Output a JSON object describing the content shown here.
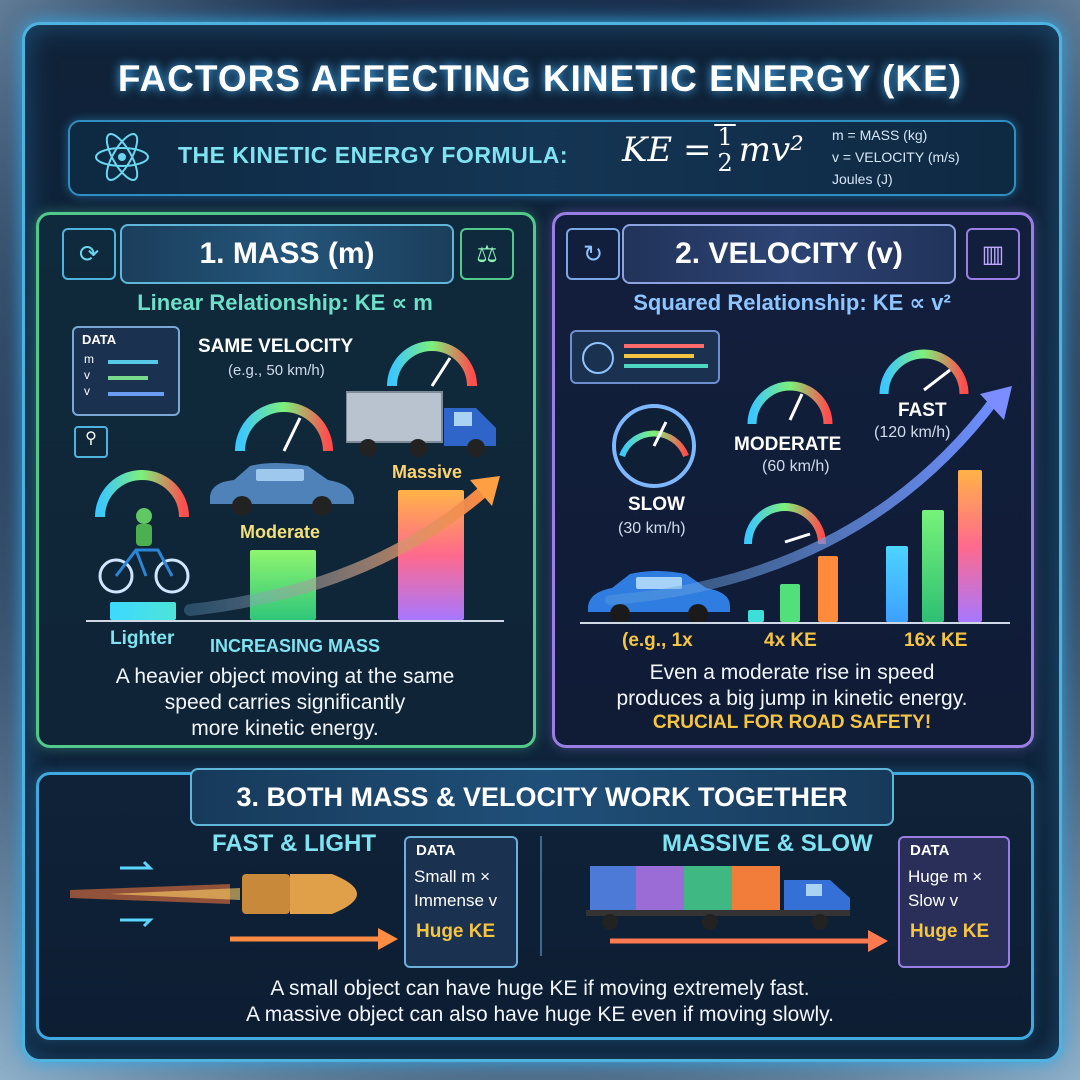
{
  "title": "FACTORS AFFECTING KINETIC ENERGY (KE)",
  "formula": {
    "label": "THE KINETIC ENERGY FORMULA:",
    "lhs": "KE =",
    "num": "1",
    "den": "2",
    "rhs": "mv²",
    "legend": [
      "m = MASS (kg)",
      "v = VELOCITY (m/s)",
      "Joules (J)"
    ]
  },
  "mass": {
    "header": "1. MASS (m)",
    "relationship": "Linear Relationship: KE ∝ m",
    "data_label": "DATA",
    "data_rows": [
      "m",
      "v",
      "v"
    ],
    "same_velocity": "SAME VELOCITY",
    "same_velocity_sub": "(e.g., 50 km/h)",
    "labels": {
      "lighter": "Lighter",
      "moderate": "Moderate",
      "massive": "Massive"
    },
    "axis_label": "INCREASING MASS",
    "description": [
      "A heavier object moving at the same",
      "speed carries significantly",
      "more kinetic energy."
    ]
  },
  "velocity": {
    "header": "2. VELOCITY (v)",
    "relationship": "Squared Relationship: KE ∝ v²",
    "slow": "SLOW",
    "slow_sub": "(30 km/h)",
    "moderate": "MODERATE",
    "moderate_sub": "(60 km/h)",
    "fast": "FAST",
    "fast_sub": "(120 km/h)",
    "ticks": [
      "(e.g., 1x",
      "4x KE",
      "16x KE"
    ],
    "description": [
      "Even a moderate rise in speed",
      "produces a big jump in kinetic energy."
    ],
    "highlight": "CRUCIAL FOR ROAD SAFETY!"
  },
  "together": {
    "header": "3. BOTH MASS & VELOCITY WORK TOGETHER",
    "left_title": "FAST & LIGHT",
    "right_title": "MASSIVE & SLOW",
    "left_box": {
      "label": "DATA",
      "line1": "Small m ×",
      "line2": "Immense v",
      "result": "Huge KE"
    },
    "right_box": {
      "label": "DATA",
      "line1": "Huge m ×",
      "line2": "Slow v",
      "result": "Huge KE"
    },
    "description": [
      "A small object can have huge KE if moving extremely fast.",
      "A massive object can also have huge KE even if moving slowly."
    ]
  },
  "colors": {
    "accent": "#4fb3e0",
    "mass": "#52c98a",
    "velocity": "#9a7ee6",
    "highlight": "#f5c542"
  }
}
